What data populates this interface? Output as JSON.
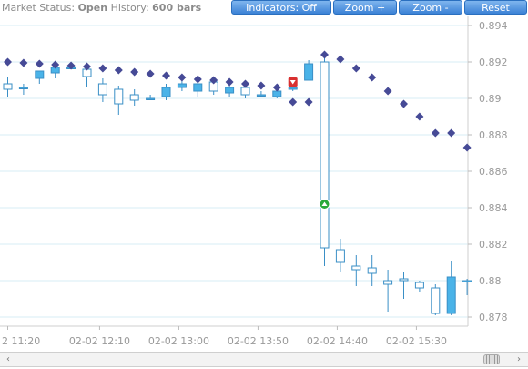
{
  "status": {
    "market_label": "Market Status:",
    "market_value": "Open",
    "history_label": "History:",
    "history_value": "600 bars"
  },
  "buttons": {
    "indicators": "Indicators: Off",
    "zoom_in": "Zoom +",
    "zoom_out": "Zoom -",
    "reset": "Reset"
  },
  "colors": {
    "bull": "#4ab3e8",
    "bear": "#ffffff",
    "candle_outline": "#3a8fc6",
    "marker": "#464a96",
    "grid": "#d7ecf6",
    "sell_signal": "#d93030",
    "buy_signal": "#27a83a"
  },
  "chart_data": {
    "type": "candlestick",
    "ylim": [
      0.8775,
      0.8945
    ],
    "y_ticks": [
      "0.878",
      "0.88",
      "0.882",
      "0.884",
      "0.886",
      "0.888",
      "0.89",
      "0.892",
      "0.894"
    ],
    "y_tick_values": [
      0.878,
      0.88,
      0.882,
      0.884,
      0.886,
      0.888,
      0.89,
      0.892,
      0.894
    ],
    "x_ticks": [
      "2 11:20",
      "02-02 12:10",
      "02-02 13:00",
      "02-02 13:50",
      "02-02 14:40",
      "02-02 15:30"
    ],
    "x_tick_bar_index": [
      0,
      5.8,
      10.8,
      15.8,
      20.8,
      25.8
    ],
    "candles": [
      {
        "o": 0.8908,
        "h": 0.8912,
        "l": 0.8901,
        "c": 0.8905
      },
      {
        "o": 0.8906,
        "h": 0.8908,
        "l": 0.8902,
        "c": 0.8906
      },
      {
        "o": 0.8911,
        "h": 0.8915,
        "l": 0.8908,
        "c": 0.8915
      },
      {
        "o": 0.8914,
        "h": 0.8918,
        "l": 0.8911,
        "c": 0.8917
      },
      {
        "o": 0.8917,
        "h": 0.8919,
        "l": 0.8916,
        "c": 0.8917
      },
      {
        "o": 0.8916,
        "h": 0.8918,
        "l": 0.8906,
        "c": 0.8912
      },
      {
        "o": 0.8908,
        "h": 0.8911,
        "l": 0.8898,
        "c": 0.8902
      },
      {
        "o": 0.8905,
        "h": 0.8907,
        "l": 0.8891,
        "c": 0.8897
      },
      {
        "o": 0.8902,
        "h": 0.8905,
        "l": 0.8896,
        "c": 0.8899
      },
      {
        "o": 0.89,
        "h": 0.8902,
        "l": 0.8899,
        "c": 0.89
      },
      {
        "o": 0.8901,
        "h": 0.8908,
        "l": 0.8899,
        "c": 0.8906
      },
      {
        "o": 0.8906,
        "h": 0.8912,
        "l": 0.8904,
        "c": 0.8908
      },
      {
        "o": 0.8904,
        "h": 0.891,
        "l": 0.8901,
        "c": 0.8908
      },
      {
        "o": 0.8909,
        "h": 0.8912,
        "l": 0.8902,
        "c": 0.8904
      },
      {
        "o": 0.8903,
        "h": 0.8908,
        "l": 0.8901,
        "c": 0.8906
      },
      {
        "o": 0.8906,
        "h": 0.8907,
        "l": 0.89,
        "c": 0.8902
      },
      {
        "o": 0.8902,
        "h": 0.8904,
        "l": 0.8901,
        "c": 0.8902
      },
      {
        "o": 0.8901,
        "h": 0.8906,
        "l": 0.89,
        "c": 0.8904
      },
      {
        "o": 0.8905,
        "h": 0.8908,
        "l": 0.8904,
        "c": 0.8906
      },
      {
        "o": 0.891,
        "h": 0.8921,
        "l": 0.891,
        "c": 0.8919
      },
      {
        "o": 0.892,
        "h": 0.8923,
        "l": 0.8808,
        "c": 0.8818
      },
      {
        "o": 0.8817,
        "h": 0.8823,
        "l": 0.8805,
        "c": 0.881
      },
      {
        "o": 0.8808,
        "h": 0.8814,
        "l": 0.8797,
        "c": 0.8806
      },
      {
        "o": 0.8807,
        "h": 0.8814,
        "l": 0.8797,
        "c": 0.8804
      },
      {
        "o": 0.88,
        "h": 0.8806,
        "l": 0.8783,
        "c": 0.8798
      },
      {
        "o": 0.8801,
        "h": 0.8805,
        "l": 0.879,
        "c": 0.88
      },
      {
        "o": 0.8799,
        "h": 0.88,
        "l": 0.8794,
        "c": 0.8796
      },
      {
        "o": 0.8796,
        "h": 0.8798,
        "l": 0.8781,
        "c": 0.8782
      },
      {
        "o": 0.8782,
        "h": 0.8811,
        "l": 0.8781,
        "c": 0.8802
      },
      {
        "o": 0.88,
        "h": 0.8801,
        "l": 0.8792,
        "c": 0.88
      }
    ],
    "markers": [
      {
        "bar": 0,
        "y": 0.892
      },
      {
        "bar": 1,
        "y": 0.89195
      },
      {
        "bar": 2,
        "y": 0.8919
      },
      {
        "bar": 3,
        "y": 0.89185
      },
      {
        "bar": 4,
        "y": 0.8918
      },
      {
        "bar": 5,
        "y": 0.89175
      },
      {
        "bar": 6,
        "y": 0.89165
      },
      {
        "bar": 7,
        "y": 0.89155
      },
      {
        "bar": 8,
        "y": 0.89145
      },
      {
        "bar": 9,
        "y": 0.89135
      },
      {
        "bar": 10,
        "y": 0.89125
      },
      {
        "bar": 11,
        "y": 0.89115
      },
      {
        "bar": 12,
        "y": 0.89105
      },
      {
        "bar": 13,
        "y": 0.891
      },
      {
        "bar": 14,
        "y": 0.8909
      },
      {
        "bar": 15,
        "y": 0.8908
      },
      {
        "bar": 16,
        "y": 0.8907
      },
      {
        "bar": 17,
        "y": 0.8906
      },
      {
        "bar": 18,
        "y": 0.8898
      },
      {
        "bar": 19,
        "y": 0.8898
      },
      {
        "bar": 20,
        "y": 0.8924
      },
      {
        "bar": 21,
        "y": 0.89215
      },
      {
        "bar": 22,
        "y": 0.89165
      },
      {
        "bar": 23,
        "y": 0.89115
      },
      {
        "bar": 24,
        "y": 0.8904
      },
      {
        "bar": 25,
        "y": 0.8897
      },
      {
        "bar": 26,
        "y": 0.889
      },
      {
        "bar": 27,
        "y": 0.8881
      },
      {
        "bar": 28,
        "y": 0.8881
      },
      {
        "bar": 29,
        "y": 0.8873
      }
    ],
    "signals": [
      {
        "bar": 18,
        "y": 0.8909,
        "kind": "sell"
      },
      {
        "bar": 20,
        "y": 0.8842,
        "kind": "buy"
      }
    ]
  }
}
